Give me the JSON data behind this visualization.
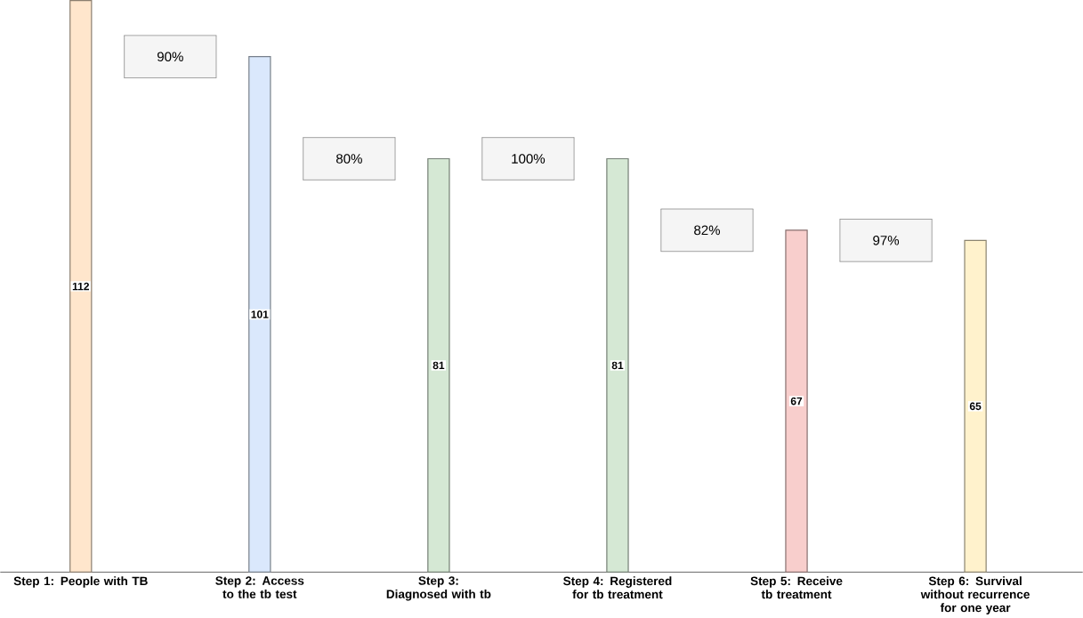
{
  "chart_data": {
    "type": "bar",
    "categories": [
      "Step 1: People with TB",
      "Step 2: Access to the tb test",
      "Step 3: Diagnosed with tb",
      "Step 4: Registered for tb treatment",
      "Step 5: Receive tb treatment",
      "Step 6: Survival without recurrence for one year"
    ],
    "values": [
      112,
      101,
      81,
      81,
      67,
      65
    ],
    "colors": [
      "#ffe6cc",
      "#dae8fc",
      "#d5e8d4",
      "#d5e8d4",
      "#f8cecc",
      "#fff2cc"
    ],
    "data_labels": true,
    "annotations": [
      "90%",
      "80%",
      "100%",
      "82%",
      "97%"
    ]
  }
}
